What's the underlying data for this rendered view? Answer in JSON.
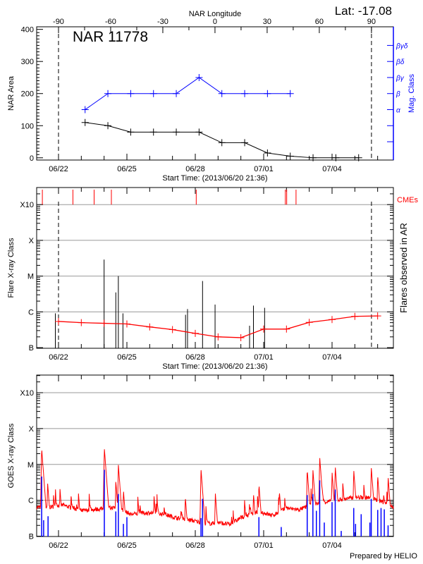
{
  "header": {
    "lat_label": "Lat: -17.08",
    "longitude_axis_title": "NAR Longitude",
    "region_title": "NAR 11778"
  },
  "footer": {
    "credit": "Prepared by HELIO"
  },
  "colors": {
    "area": "#000000",
    "mag_class": "#0000ff",
    "flare_bg": "#ff0000",
    "cme": "#ff0000",
    "goes_long": "#ff0000",
    "goes_short": "#0000ff",
    "grid": "#999999"
  },
  "chart_data": [
    {
      "type": "line",
      "panel": "nar-area",
      "xlim": [
        "2013-06-21 01:00",
        "2013-07-06 16:35"
      ],
      "xlabel": "Start Time: (2013/06/20 21:36)",
      "xticks": [
        "06/22",
        "06/25",
        "06/28",
        "07/01",
        "07/04"
      ],
      "xtick_dates": [
        "2013-06-22 00:00",
        "2013-06-25 00:00",
        "2013-06-28 00:00",
        "2013-07-01 00:00",
        "2013-07-04 00:00"
      ],
      "ylabel": "NAR Area",
      "ylim": [
        -7,
        408
      ],
      "yticks": [
        "0",
        "100",
        "200",
        "300",
        "400"
      ],
      "right_ylabel": "Mag. Class",
      "right_ticks": [
        "α",
        "β",
        "βγ",
        "βδ",
        "βγδ"
      ],
      "right_tick_levels": [
        150,
        200,
        250,
        300,
        350
      ],
      "top_axis": {
        "title": "NAR Longitude",
        "ticks": [
          "-90",
          "-60",
          "-30",
          "0",
          "30",
          "60",
          "90"
        ],
        "limb_dates": [
          "2013-06-22 00:00",
          "2013-07-05 17:30"
        ]
      },
      "dates": [
        "2013-06-23 04:00",
        "2013-06-24 04:00",
        "2013-06-25 04:00",
        "2013-06-26 04:00",
        "2013-06-27 04:00",
        "2013-06-28 04:00",
        "2013-06-29 04:00",
        "2013-06-30 04:00",
        "2013-07-01 04:00",
        "2013-07-02 04:00",
        "2013-07-03 04:00",
        "2013-07-04 04:00",
        "2013-07-05 04:00"
      ],
      "area": [
        110,
        100,
        80,
        80,
        80,
        80,
        47,
        47,
        15,
        5,
        0,
        0,
        0
      ],
      "mag_class": [
        "α",
        "β",
        "β",
        "β",
        "β",
        "βγ",
        "β",
        "β",
        "β",
        "β"
      ]
    },
    {
      "type": "bar",
      "panel": "flares",
      "xlim": [
        "2013-06-21 01:00",
        "2013-07-06 16:35"
      ],
      "xlabel": "Start Time: (2013/06/20 21:36)",
      "xticks": [
        "06/22",
        "06/25",
        "06/28",
        "07/01",
        "07/04"
      ],
      "ylabel": "Flare X-ray Class",
      "right_ylabel": "Flares observed in AR",
      "yscale": "log",
      "ylim_class": [
        "B0.96",
        "X30"
      ],
      "yticks": [
        "B",
        "C",
        "M",
        "X",
        "X10"
      ],
      "limb_dates": [
        "2013-06-22 00:00",
        "2013-07-05 17:30"
      ],
      "cme_label": "CMEs",
      "cmes": [
        "2013-06-21 07:00",
        "2013-06-22 15:10",
        "2013-06-23 13:30",
        "2013-06-24 07:40",
        "2013-06-28 01:00",
        "2013-07-01 22:50",
        "2013-07-02 00:15",
        "2013-07-02 10:05"
      ],
      "flares": [
        {
          "date": "2013-06-21 20:40",
          "class": "B9.1"
        },
        {
          "date": "2013-06-24 00:00",
          "class": "M2.9"
        },
        {
          "date": "2013-06-24 12:20",
          "class": "C3.5"
        },
        {
          "date": "2013-06-24 15:00",
          "class": "M1.0"
        },
        {
          "date": "2013-06-24 19:50",
          "class": "B9.1"
        },
        {
          "date": "2013-06-27 13:45",
          "class": "B8.3"
        },
        {
          "date": "2013-06-27 15:50",
          "class": "C1.2"
        },
        {
          "date": "2013-06-28 07:40",
          "class": "C7.3"
        },
        {
          "date": "2013-06-28 20:50",
          "class": "C1.6"
        },
        {
          "date": "2013-06-30 09:10",
          "class": "B4.1"
        },
        {
          "date": "2013-06-30 13:15",
          "class": "C1.5"
        },
        {
          "date": "2013-07-01 01:00",
          "class": "C1.3"
        }
      ],
      "background": {
        "dates": [
          "2013-06-22 00:00",
          "2013-06-23 00:00",
          "2013-06-24 00:00",
          "2013-06-25 00:00",
          "2013-06-26 00:00",
          "2013-06-27 00:00",
          "2013-06-28 00:00",
          "2013-06-29 00:00",
          "2013-06-30 00:00",
          "2013-07-01 00:00",
          "2013-07-02 00:00",
          "2013-07-03 00:00",
          "2013-07-04 00:00",
          "2013-07-05 00:00",
          "2013-07-06 00:00"
        ],
        "class": [
          "B5.4",
          "B5.0",
          "B4.8",
          "B4.6",
          "B3.8",
          "B3.2",
          "B2.5",
          "B2.0",
          "B1.9",
          "B3.3",
          "B3.3",
          "B5.1",
          "B6.1",
          "B7.5",
          "B7.7"
        ]
      }
    },
    {
      "type": "line",
      "panel": "goes",
      "xlim": [
        "2013-06-21 01:00",
        "2013-07-06 16:35"
      ],
      "xticks": [
        "06/22",
        "06/25",
        "06/28",
        "07/01",
        "07/04"
      ],
      "ylabel": "GOES X-ray Class",
      "yscale": "log",
      "ylim_class": [
        "B0.98",
        "X31"
      ],
      "yticks": [
        "B",
        "C",
        "M",
        "X",
        "X10"
      ],
      "long_channel": {
        "baseline_dates": [
          "2013-06-21 01:10",
          "2013-06-21 14:10",
          "2013-06-22 04:20",
          "2013-06-23 00:30",
          "2013-06-23 12:00",
          "2013-06-24 05:00",
          "2013-06-24 13:40",
          "2013-06-25 04:00",
          "2013-06-26 00:10",
          "2013-06-26 14:40",
          "2013-06-27 05:00",
          "2013-06-27 19:10",
          "2013-06-28 12:30",
          "2013-06-29 00:00",
          "2013-06-29 14:20",
          "2013-06-29 23:00",
          "2013-06-30 19:00",
          "2013-07-01 09:20",
          "2013-07-01 23:45",
          "2013-07-02 14:00",
          "2013-07-03 01:30",
          "2013-07-03 13:00",
          "2013-07-04 03:20",
          "2013-07-04 23:30",
          "2013-07-05 13:40",
          "2013-07-06 04:00",
          "2013-07-06 18:30"
        ],
        "baseline_class": [
          "B6.4",
          "B6.4",
          "B7.4",
          "B5.1",
          "B5.5",
          "B6.0",
          "B6.4",
          "B4.1",
          "B4.5",
          "B4.1",
          "B3.2",
          "B2.8",
          "B2.2",
          "B2.4",
          "B2.1",
          "B3.2",
          "B4.8",
          "B3.8",
          "B6.0",
          "B5.5",
          "B7.4",
          "B8.7",
          "C1.0",
          "C1.2",
          "C1.2",
          "B9.3",
          "B6.0"
        ],
        "peaks": [
          [
            "2013-06-21 06:15",
            "M2.9"
          ],
          [
            "2013-06-21 12:30",
            "C3.2"
          ],
          [
            "2013-06-22 01:30",
            "C2.2"
          ],
          [
            "2013-06-22 21:00",
            "C1.6"
          ],
          [
            "2013-06-24 00:15",
            "M2.9"
          ],
          [
            "2013-06-24 12:20",
            "C3.5"
          ],
          [
            "2013-06-24 15:00",
            "M1.0"
          ],
          [
            "2013-06-24 20:20",
            "C2.0"
          ],
          [
            "2013-06-26 04:30",
            "C1.4"
          ],
          [
            "2013-06-27 13:30",
            "C1.3"
          ],
          [
            "2013-06-28 06:00",
            "C7.6"
          ],
          [
            "2013-06-28 21:05",
            "C1.6"
          ],
          [
            "2013-06-30 13:15",
            "C1.6"
          ],
          [
            "2013-06-30 19:00",
            "C2.9"
          ],
          [
            "2013-07-01 16:30",
            "C1.9"
          ],
          [
            "2013-07-02 21:50",
            "C7.3"
          ],
          [
            "2013-07-03 03:50",
            "C7.3"
          ],
          [
            "2013-07-03 11:00",
            "M1.6"
          ],
          [
            "2013-07-04 00:00",
            "C6.1"
          ],
          [
            "2013-07-04 03:20",
            "C9.1"
          ],
          [
            "2013-07-04 11:20",
            "C3.1"
          ],
          [
            "2013-07-04 22:50",
            "C7.1"
          ],
          [
            "2013-07-05 09:25",
            "C2.9"
          ],
          [
            "2013-07-05 17:15",
            "C8.7"
          ],
          [
            "2013-07-06 00:00",
            "C5.1"
          ],
          [
            "2013-07-06 11:00",
            "C4.6"
          ]
        ]
      },
      "short_channel": {
        "peaks": [
          [
            "2013-06-21 06:15",
            "C4.6"
          ],
          [
            "2013-06-21 08:20",
            "B2.8"
          ],
          [
            "2013-06-21 13:00",
            "B3.6"
          ],
          [
            "2013-06-24 00:15",
            "C7.1"
          ],
          [
            "2013-06-24 12:20",
            "B4.9"
          ],
          [
            "2013-06-24 15:00",
            "C1.5"
          ],
          [
            "2013-06-24 20:20",
            "B2.2"
          ],
          [
            "2013-06-25 00:00",
            "B3.4"
          ],
          [
            "2013-06-28 06:00",
            "B3.2"
          ],
          [
            "2013-06-28 07:40",
            "C1.1"
          ],
          [
            "2013-06-30 19:00",
            "B3.4"
          ],
          [
            "2013-07-01 18:30",
            "B1.8"
          ],
          [
            "2013-07-02 21:50",
            "C1.4"
          ],
          [
            "2013-07-03 03:50",
            "C1.5"
          ],
          [
            "2013-07-03 07:30",
            "B5.1"
          ],
          [
            "2013-07-03 11:00",
            "C3.6"
          ],
          [
            "2013-07-03 15:50",
            "B2.4"
          ],
          [
            "2013-07-04 00:00",
            "B8.9"
          ],
          [
            "2013-07-04 03:20",
            "C2.0"
          ],
          [
            "2013-07-04 09:40",
            "B1.4"
          ],
          [
            "2013-07-04 22:50",
            "B6.1"
          ],
          [
            "2013-07-05 00:45",
            "B2.2"
          ],
          [
            "2013-07-05 06:40",
            "B4.1"
          ],
          [
            "2013-07-05 15:50",
            "B2.4"
          ],
          [
            "2013-07-05 17:15",
            "C1.1"
          ],
          [
            "2013-07-06 00:05",
            "B5.4"
          ],
          [
            "2013-07-06 03:35",
            "B6.1"
          ],
          [
            "2013-07-06 07:00",
            "B5.6"
          ],
          [
            "2013-07-06 11:00",
            "B2.0"
          ]
        ]
      }
    }
  ]
}
